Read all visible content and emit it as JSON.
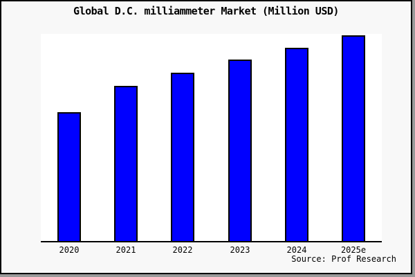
{
  "chart_data": {
    "type": "bar",
    "title": "Global D.C. milliammeter Market (Million USD)",
    "categories": [
      "2020",
      "2021",
      "2022",
      "2023",
      "2024",
      "2025e"
    ],
    "values": [
      188,
      226,
      245,
      264,
      281,
      299
    ],
    "value_note": "y-axis has no tick labels; values are relative bar heights estimated from pixels",
    "ylim": [
      0,
      301
    ],
    "xlabel": "",
    "ylabel": "",
    "grid": false,
    "legend": false,
    "source": "Source: Prof Research",
    "colors": {
      "bar_fill": "#0000ff",
      "bar_border": "#000000",
      "plot_background": "#ffffff",
      "canvas_background": "#f8f8f8",
      "frame_border": "#000000",
      "shadow": "#9a9a9a",
      "text": "#000000"
    }
  }
}
